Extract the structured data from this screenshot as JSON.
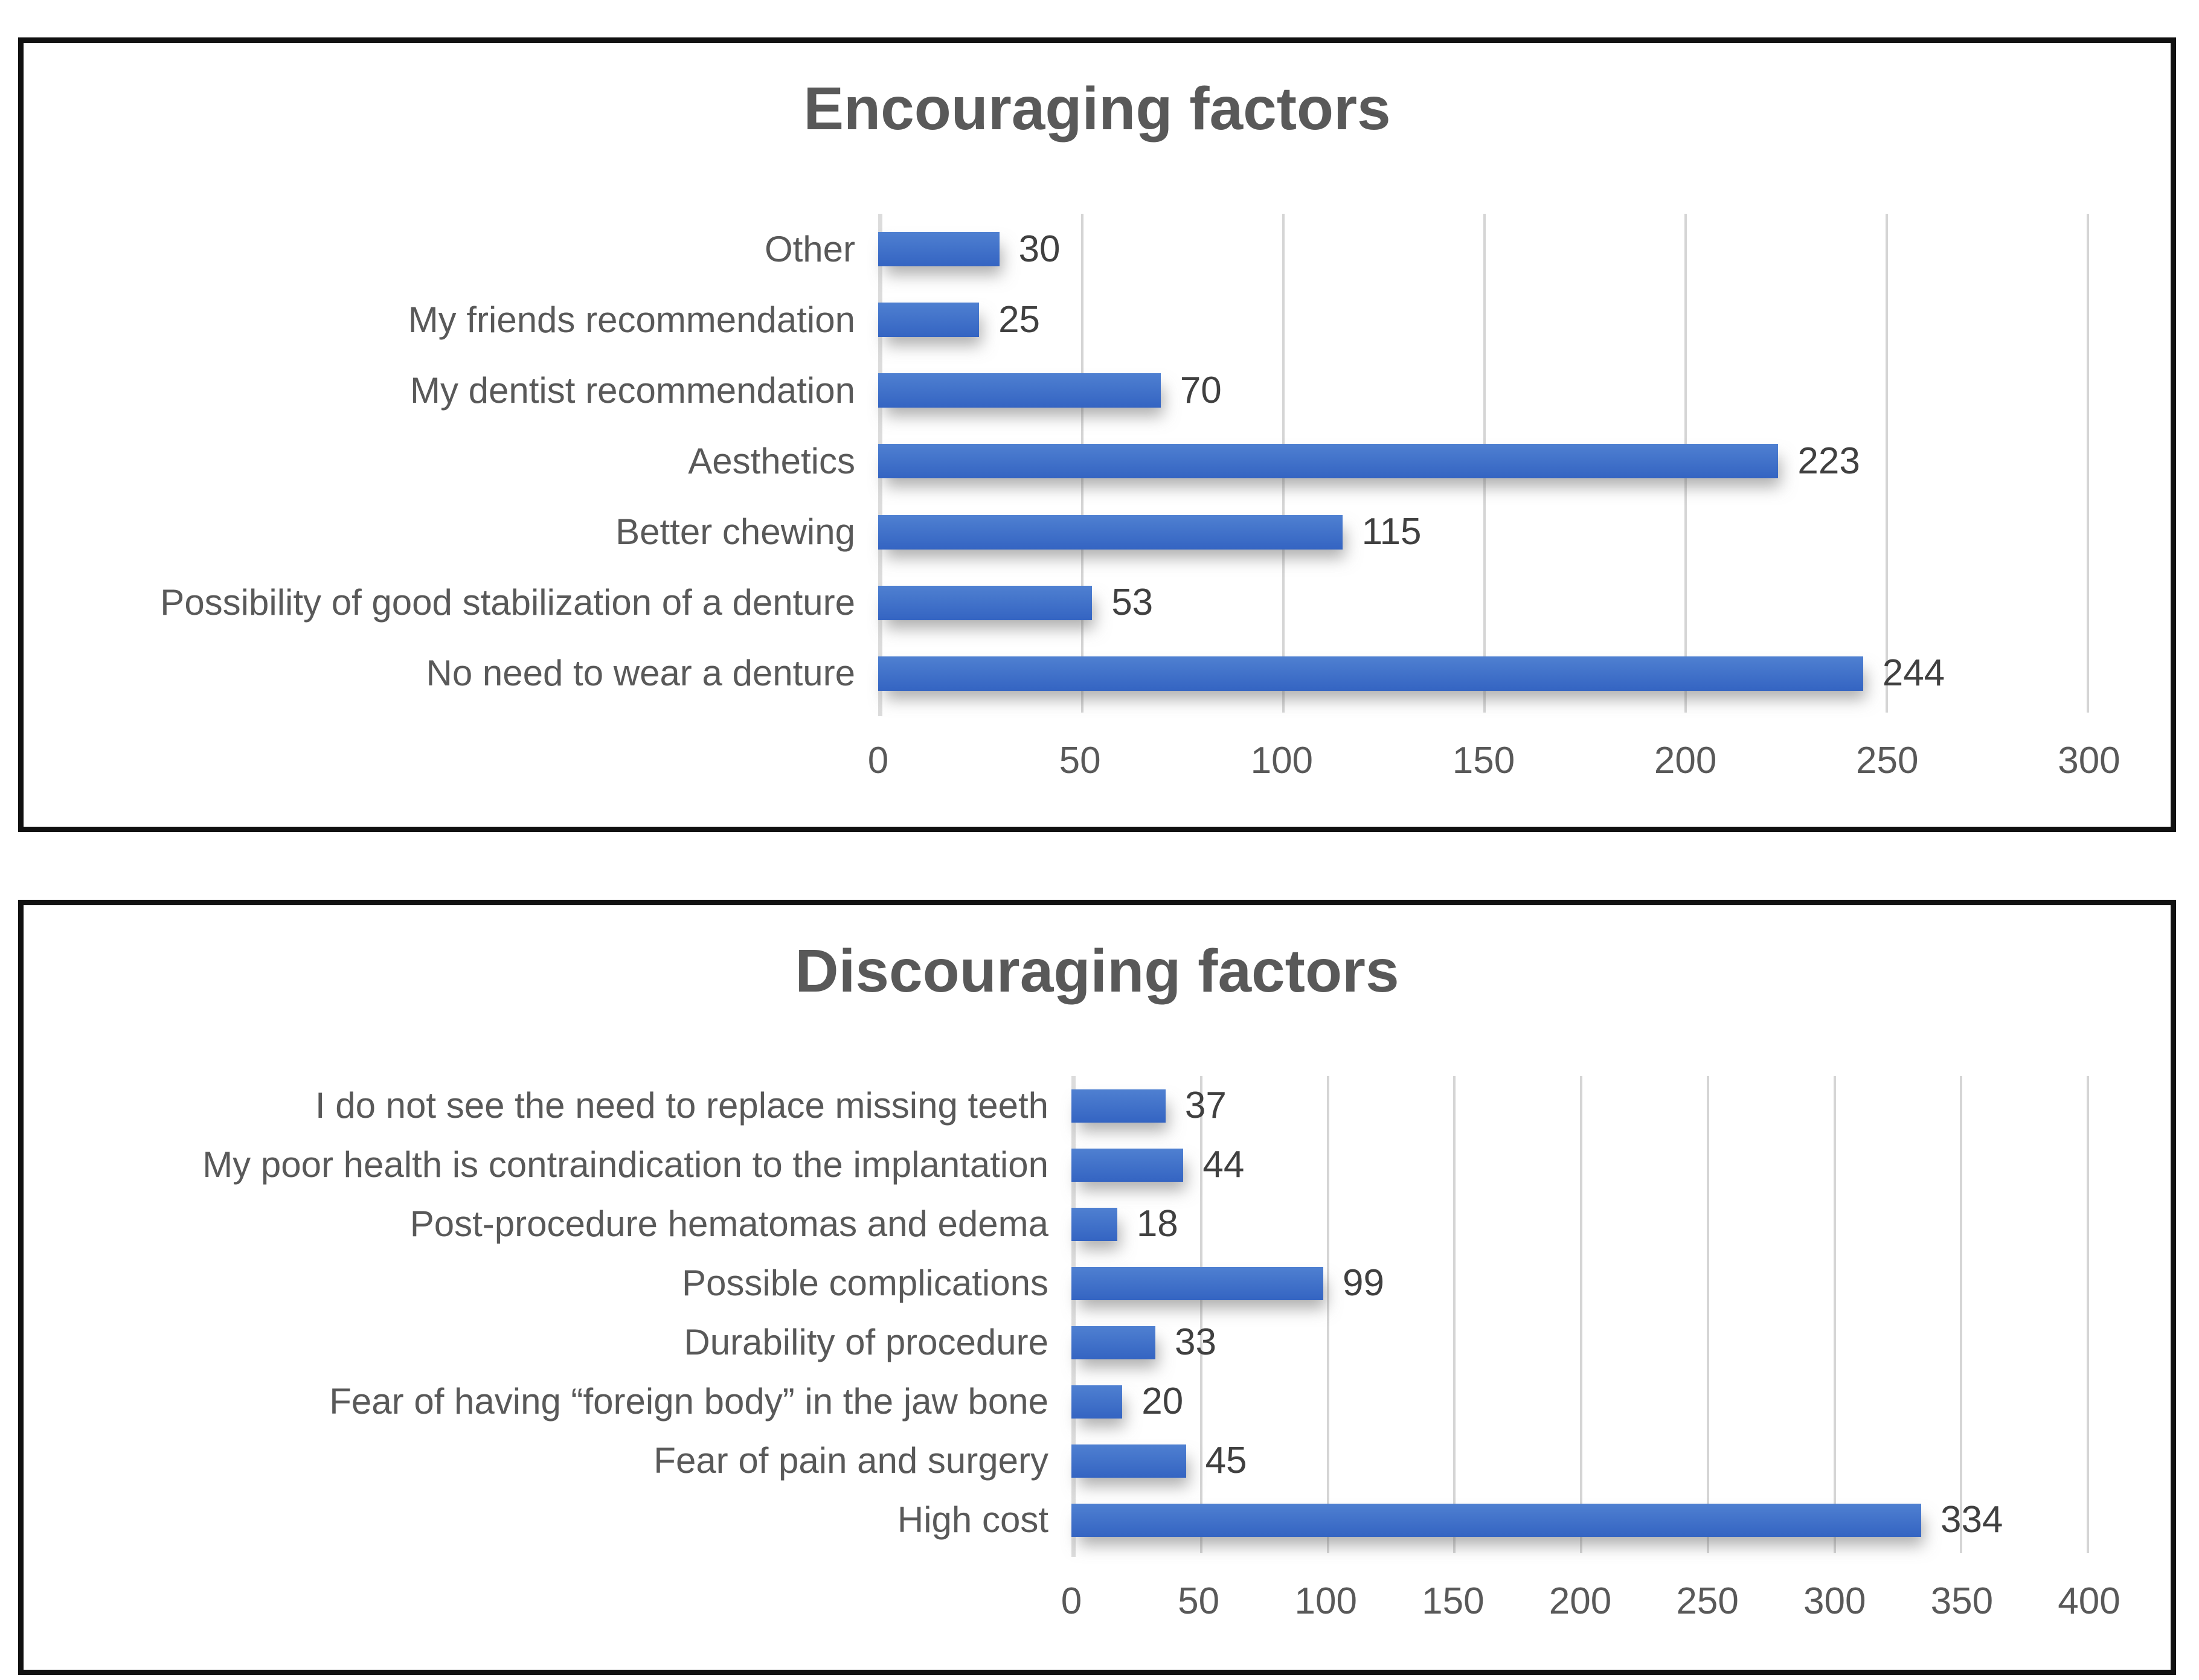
{
  "chart_data": [
    {
      "type": "bar",
      "orientation": "horizontal",
      "title": "Encouraging factors",
      "categories": [
        "Other",
        "My friends recommendation",
        "My dentist recommendation",
        "Aesthetics",
        "Better chewing",
        "Possibility of good stabilization of a denture",
        "No need to wear a denture"
      ],
      "values": [
        30,
        25,
        70,
        223,
        115,
        53,
        244
      ],
      "xlabel": "",
      "ylabel": "",
      "xlim": [
        0,
        300
      ],
      "xticks": [
        0,
        50,
        100,
        150,
        200,
        250,
        300
      ],
      "grid": "vertical-gridlines",
      "legend": "none",
      "data_labels": true
    },
    {
      "type": "bar",
      "orientation": "horizontal",
      "title": "Discouraging factors",
      "categories": [
        "I do not see the need to replace missing teeth",
        "My poor health is contraindication to the implantation",
        "Post-procedure hematomas and edema",
        "Possible complications",
        "Durability of procedure",
        "Fear of having “foreign body” in the jaw bone",
        "Fear of pain and surgery",
        "High cost"
      ],
      "values": [
        37,
        44,
        18,
        99,
        33,
        20,
        45,
        334
      ],
      "xlabel": "",
      "ylabel": "",
      "xlim": [
        0,
        400
      ],
      "xticks": [
        0,
        50,
        100,
        150,
        200,
        250,
        300,
        350,
        400
      ],
      "grid": "vertical-gridlines",
      "legend": "none",
      "data_labels": true
    }
  ],
  "colors": {
    "bar_top": "#4f80d1",
    "bar_bottom": "#3464c2",
    "grid_line": "#d5d5d5",
    "axis_line": "#dcdcdc",
    "title_text": "#595959",
    "category_text": "#595959",
    "value_text": "#404040",
    "tick_text": "#595959",
    "panel_border": "#111111",
    "background": "#ffffff"
  }
}
